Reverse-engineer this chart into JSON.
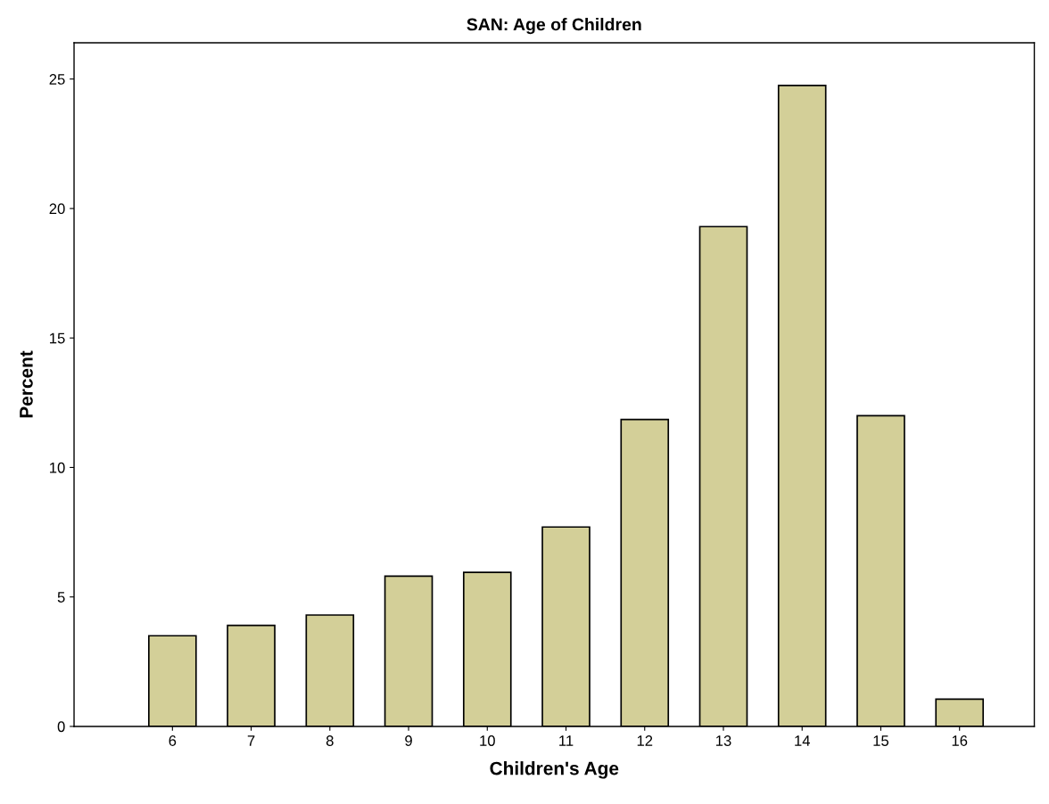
{
  "chart_data": {
    "type": "bar",
    "title": "SAN: Age of Children",
    "xlabel": "Children's Age",
    "ylabel": "Percent",
    "categories": [
      "6",
      "7",
      "8",
      "9",
      "10",
      "11",
      "12",
      "13",
      "14",
      "15",
      "16"
    ],
    "values": [
      3.5,
      3.9,
      4.3,
      5.8,
      5.95,
      7.7,
      11.85,
      19.3,
      24.75,
      12.0,
      1.05
    ],
    "color": "#d3cf98",
    "ylim": [
      0,
      26.4
    ],
    "yticks": [
      0,
      5,
      10,
      15,
      20,
      25
    ],
    "grid": false
  }
}
